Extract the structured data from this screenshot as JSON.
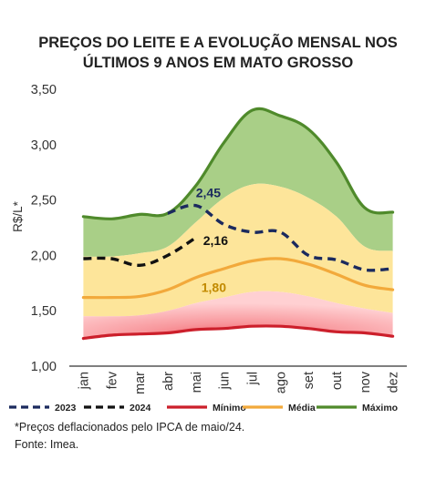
{
  "chart_data": {
    "type": "area",
    "title": "PREÇOS DO LEITE E A EVOLUÇÃO MENSAL NOS ÚLTIMOS 9 ANOS EM MATO GROSSO",
    "title_lines": [
      "PREÇOS DO LEITE E A EVOLUÇÃO MENSAL NOS",
      "ÚLTIMOS 9 ANOS EM MATO GROSSO"
    ],
    "ylabel": "R$/L*",
    "ylim": [
      1.0,
      3.5
    ],
    "yticks": [
      "1,00",
      "1,50",
      "2,00",
      "2,50",
      "3,00",
      "3,50"
    ],
    "categories": [
      "jan",
      "fev",
      "mar",
      "abr",
      "mai",
      "jun",
      "jul",
      "ago",
      "set",
      "out",
      "nov",
      "dez"
    ],
    "grid": false,
    "legend_position": "bottom",
    "series": [
      {
        "name": "Mínimo",
        "kind": "line",
        "color": "#cc1f2b",
        "values": [
          1.25,
          1.28,
          1.29,
          1.3,
          1.33,
          1.34,
          1.36,
          1.36,
          1.34,
          1.31,
          1.3,
          1.27
        ]
      },
      {
        "name": "Média",
        "kind": "line",
        "color": "#f2a93b",
        "values": [
          1.62,
          1.62,
          1.63,
          1.69,
          1.8,
          1.88,
          1.95,
          1.97,
          1.92,
          1.83,
          1.73,
          1.69
        ]
      },
      {
        "name": "Máximo",
        "kind": "line",
        "color": "#4f8a2b",
        "values": [
          2.35,
          2.33,
          2.37,
          2.38,
          2.63,
          3.02,
          3.31,
          3.26,
          3.14,
          2.84,
          2.43,
          2.39
        ]
      },
      {
        "name": "2023",
        "kind": "dashed",
        "color": "#1b2a5e",
        "values": [
          null,
          null,
          null,
          2.38,
          2.45,
          2.28,
          2.21,
          2.21,
          2.0,
          1.96,
          1.87,
          1.88
        ]
      },
      {
        "name": "2024",
        "kind": "dashed",
        "color": "#111111",
        "values": [
          1.97,
          1.97,
          1.91,
          2.0,
          2.16,
          null,
          null,
          null,
          null,
          null,
          null,
          null
        ]
      }
    ],
    "bands": [
      {
        "series": "Máximo",
        "color": "#a9cf87"
      },
      {
        "series": "Média + desvio",
        "color": "#fde59a",
        "values": [
          1.99,
          1.99,
          2.02,
          2.08,
          2.3,
          2.52,
          2.64,
          2.62,
          2.52,
          2.35,
          2.08,
          2.04
        ]
      },
      {
        "series": "Média - desvio",
        "color": "#ffc4c4",
        "values": [
          1.45,
          1.45,
          1.46,
          1.5,
          1.57,
          1.62,
          1.67,
          1.67,
          1.63,
          1.57,
          1.52,
          1.48
        ]
      }
    ],
    "annotations": [
      {
        "text": "2,45",
        "series": "2023",
        "category": "mai",
        "color": "#1b2a5e"
      },
      {
        "text": "2,16",
        "series": "2024",
        "category": "mai",
        "color": "#111111"
      },
      {
        "text": "1,80",
        "series": "Média",
        "category": "mai",
        "color": "#c28a00"
      }
    ]
  },
  "legend": [
    {
      "label": "2023",
      "style": "dashed",
      "color": "#1b2a5e"
    },
    {
      "label": "2024",
      "style": "dashed",
      "color": "#111111"
    },
    {
      "label": "Mínimo",
      "style": "solid",
      "color": "#cc1f2b"
    },
    {
      "label": "Média",
      "style": "solid",
      "color": "#f2a93b"
    },
    {
      "label": "Máximo",
      "style": "solid",
      "color": "#4f8a2b"
    }
  ],
  "footnote": "*Preços deflacionados pelo IPCA de maio/24.",
  "source": "Fonte: Imea."
}
